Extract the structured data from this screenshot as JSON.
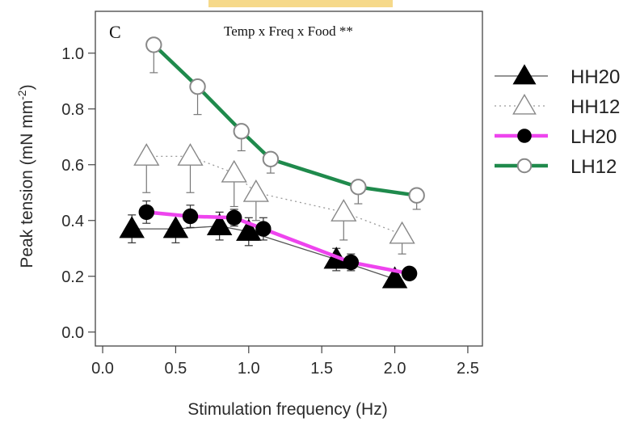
{
  "chart_data": {
    "type": "line",
    "panel_label": "C",
    "annotation": "Temp x Freq x Food **",
    "xlabel": "Stimulation frequency (Hz)",
    "ylabel": "Peak tension (mN mm",
    "ylabel_unit_sup": "-2",
    "ylabel_close": ")",
    "xlim": [
      -0.05,
      2.6
    ],
    "ylim": [
      -0.05,
      1.15
    ],
    "xticks": [
      0.0,
      0.5,
      1.0,
      1.5,
      2.0,
      2.5
    ],
    "xtick_labels": [
      "0.0",
      "0.5",
      "1.0",
      "1.5",
      "2.0",
      "2.5"
    ],
    "yticks": [
      0.0,
      0.2,
      0.4,
      0.6,
      0.8,
      1.0
    ],
    "ytick_labels": [
      "0.0",
      "0.2",
      "0.4",
      "0.6",
      "0.8",
      "1.0"
    ],
    "legend_position": "right, outside plot",
    "series": [
      {
        "name": "HH20",
        "marker": "triangle-filled",
        "line_color": "#555555",
        "line_style": "solid",
        "fit_line": true,
        "points": [
          {
            "x": 0.2,
            "y": 0.37,
            "err": 0.05
          },
          {
            "x": 0.5,
            "y": 0.37,
            "err": 0.05
          },
          {
            "x": 0.8,
            "y": 0.38,
            "err": 0.05
          },
          {
            "x": 1.0,
            "y": 0.36,
            "err": 0.05
          },
          {
            "x": 1.6,
            "y": 0.26,
            "err": 0.04
          },
          {
            "x": 2.0,
            "y": 0.19,
            "err": 0.03
          }
        ]
      },
      {
        "name": "HH12",
        "marker": "triangle-open",
        "line_color": "#9a9a9a",
        "line_style": "dotted",
        "fit_line": true,
        "points": [
          {
            "x": 0.3,
            "y": 0.63,
            "err": 0.13
          },
          {
            "x": 0.6,
            "y": 0.63,
            "err": 0.13
          },
          {
            "x": 0.9,
            "y": 0.57,
            "err": 0.12
          },
          {
            "x": 1.05,
            "y": 0.5,
            "err": 0.1
          },
          {
            "x": 1.65,
            "y": 0.43,
            "err": 0.1
          },
          {
            "x": 2.05,
            "y": 0.35,
            "err": 0.07
          }
        ]
      },
      {
        "name": "LH20",
        "marker": "circle-filled",
        "line_color": "#ee44ee",
        "line_style": "solid",
        "fit_line": true,
        "points": [
          {
            "x": 0.3,
            "y": 0.43,
            "err": 0.04
          },
          {
            "x": 0.6,
            "y": 0.415,
            "err": 0.04
          },
          {
            "x": 0.9,
            "y": 0.41,
            "err": 0.03
          },
          {
            "x": 1.1,
            "y": 0.37,
            "err": 0.04
          },
          {
            "x": 1.7,
            "y": 0.25,
            "err": 0.03
          },
          {
            "x": 2.1,
            "y": 0.21,
            "err": 0.02
          }
        ]
      },
      {
        "name": "LH12",
        "marker": "circle-open",
        "line_color": "#1f8a4c",
        "line_style": "solid",
        "fit_line": true,
        "points": [
          {
            "x": 0.35,
            "y": 1.03,
            "err": 0.1
          },
          {
            "x": 0.65,
            "y": 0.88,
            "err": 0.1
          },
          {
            "x": 0.95,
            "y": 0.72,
            "err": 0.07
          },
          {
            "x": 1.15,
            "y": 0.62,
            "err": 0.05
          },
          {
            "x": 1.75,
            "y": 0.52,
            "err": 0.06
          },
          {
            "x": 2.15,
            "y": 0.49,
            "err": 0.05
          }
        ]
      }
    ]
  },
  "colors": {
    "axis": "#444444",
    "marker_fill": "#000000",
    "open_marker_stroke": "#888888",
    "header_highlight": "#f6d98a"
  }
}
